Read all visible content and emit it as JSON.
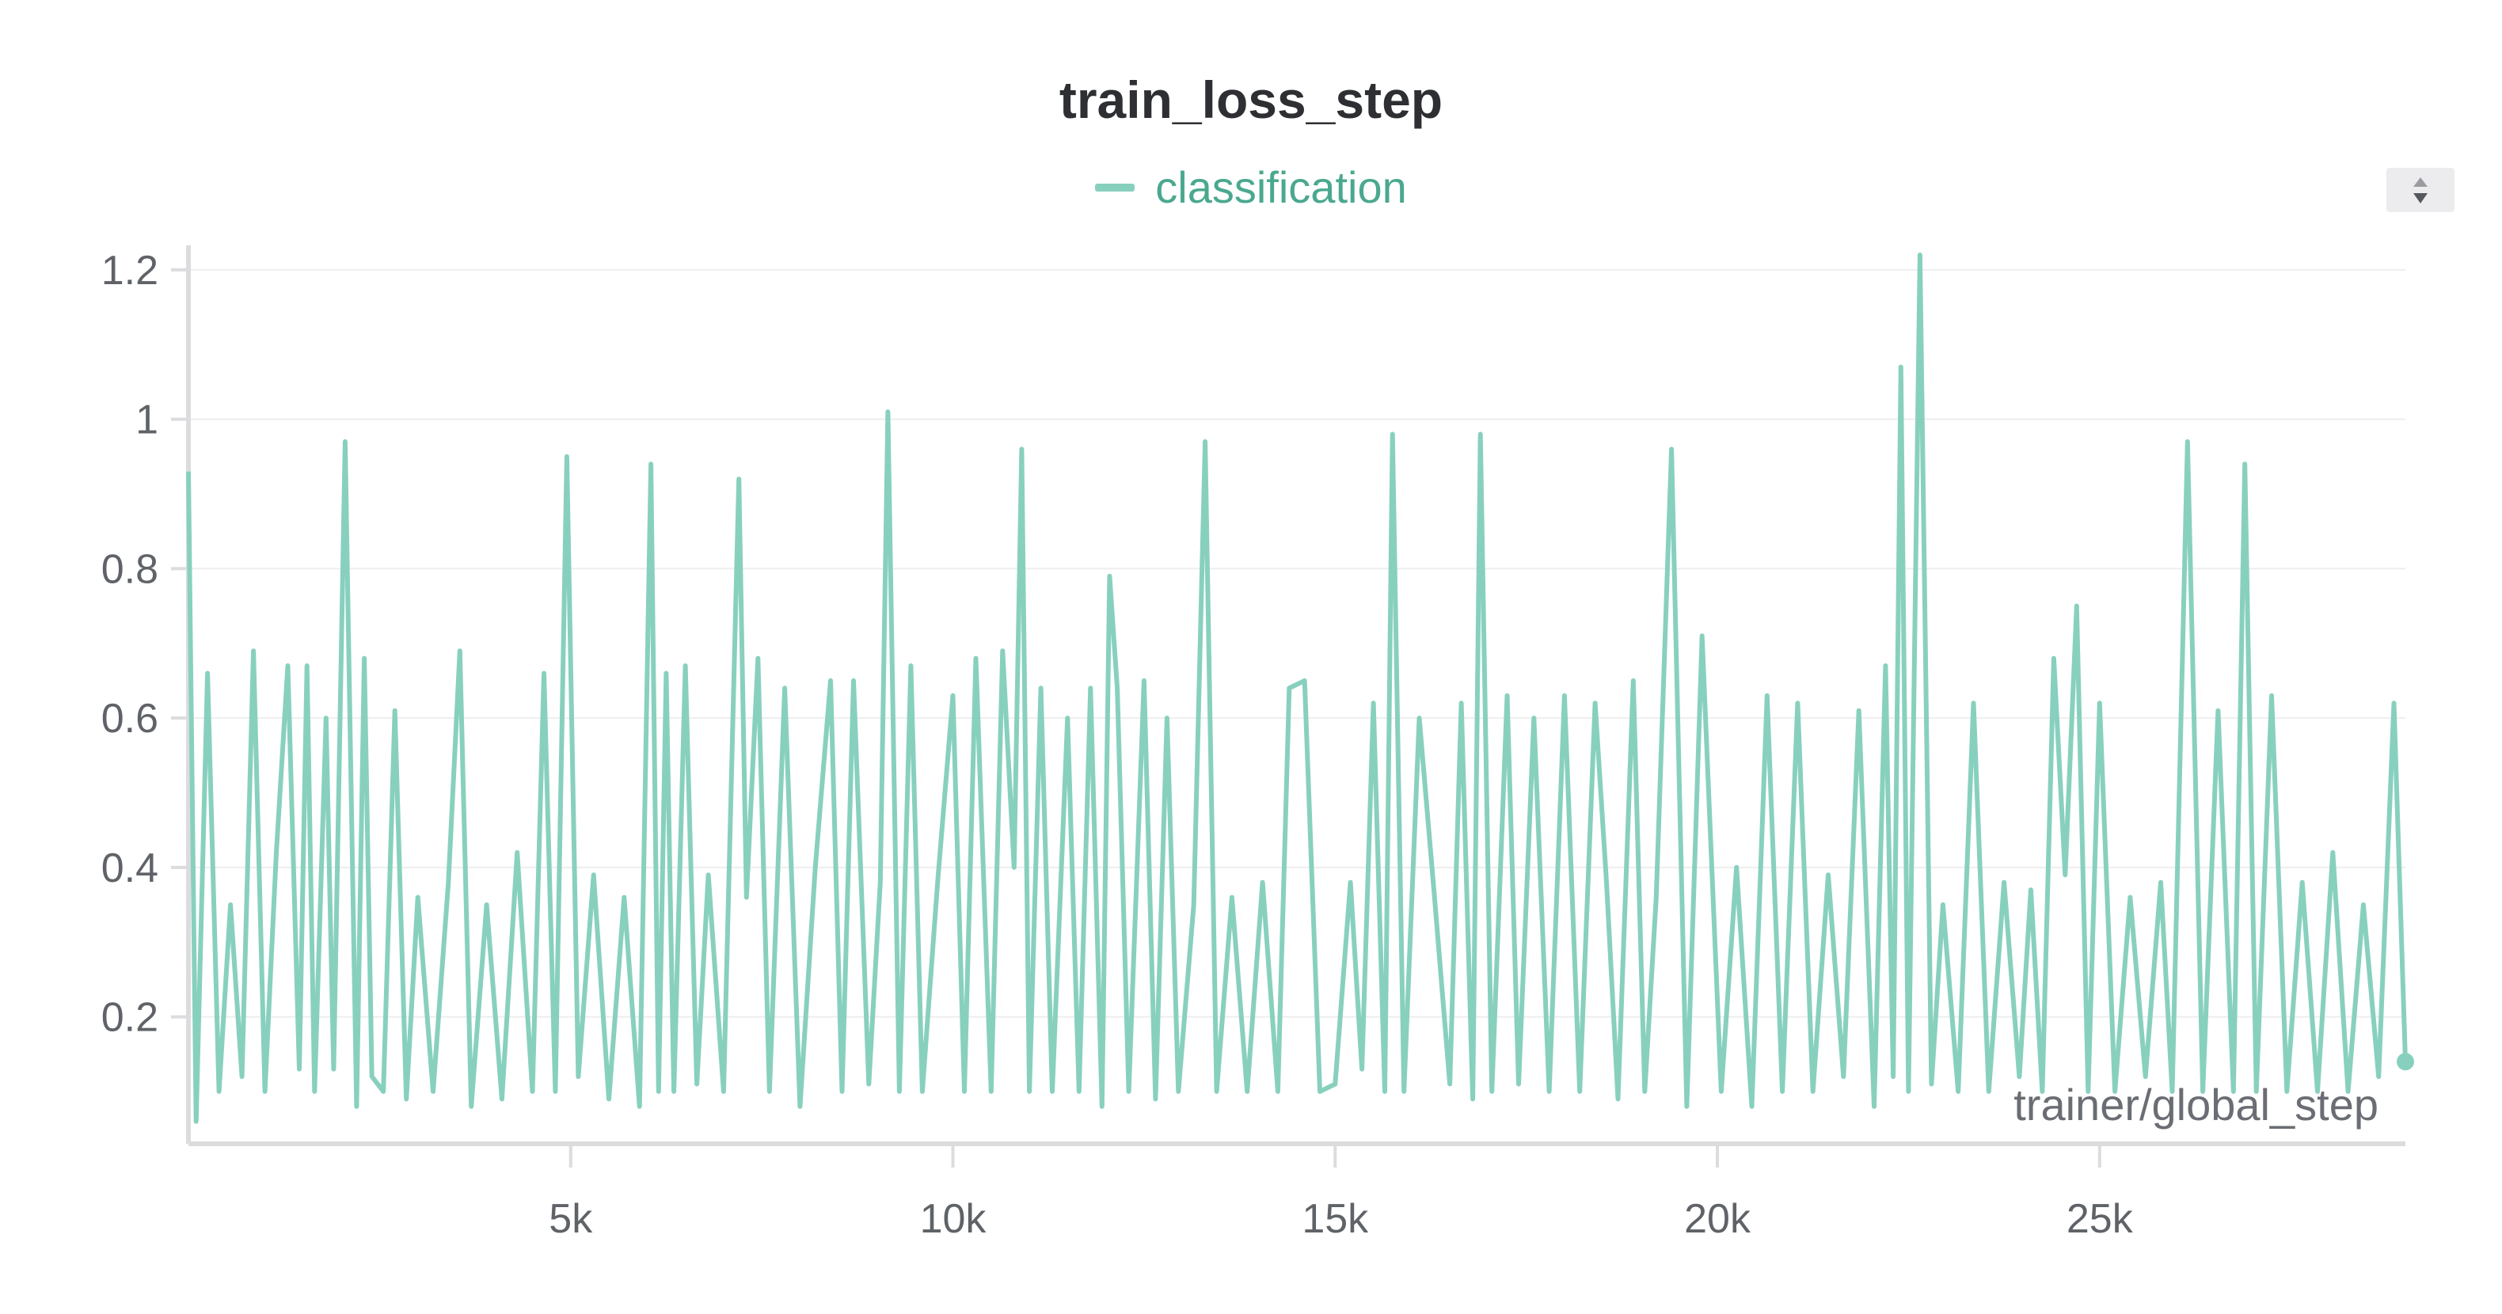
{
  "chart_data": {
    "type": "line",
    "title": "train_loss_step",
    "xlabel": "trainer/global_step",
    "ylabel": "",
    "xlim": [
      0,
      29000
    ],
    "ylim": [
      0.03,
      1.22
    ],
    "x_ticks": [
      5000,
      10000,
      15000,
      20000,
      25000
    ],
    "x_tick_labels": [
      "5k",
      "10k",
      "15k",
      "20k",
      "25k"
    ],
    "y_ticks": [
      0.2,
      0.4,
      0.6,
      0.8,
      1.0,
      1.2
    ],
    "y_tick_labels": [
      "0.2",
      "0.4",
      "0.6",
      "0.8",
      "1",
      "1.2"
    ],
    "grid": true,
    "legend_position": "top-center",
    "colors": {
      "series": "#88d0be",
      "legend_text": "#4aa88f",
      "axis": "#dcdcde",
      "grid": "#eeeeee"
    },
    "series": [
      {
        "name": "classification",
        "x": [
          0,
          100,
          250,
          400,
          550,
          700,
          850,
          1000,
          1150,
          1300,
          1450,
          1550,
          1650,
          1800,
          1900,
          2050,
          2200,
          2300,
          2400,
          2550,
          2700,
          2850,
          3000,
          3200,
          3400,
          3550,
          3700,
          3900,
          4100,
          4300,
          4500,
          4650,
          4800,
          4950,
          5100,
          5300,
          5500,
          5700,
          5900,
          6050,
          6150,
          6250,
          6350,
          6500,
          6650,
          6800,
          7000,
          7200,
          7300,
          7450,
          7600,
          7800,
          8000,
          8200,
          8400,
          8550,
          8700,
          8900,
          9050,
          9150,
          9300,
          9450,
          9600,
          9800,
          10000,
          10150,
          10300,
          10500,
          10650,
          10800,
          10900,
          11000,
          11150,
          11300,
          11500,
          11650,
          11800,
          11950,
          12050,
          12150,
          12300,
          12500,
          12650,
          12800,
          12950,
          13150,
          13300,
          13450,
          13650,
          13850,
          14050,
          14250,
          14400,
          14600,
          14800,
          15000,
          15200,
          15350,
          15500,
          15650,
          15750,
          15900,
          16100,
          16300,
          16500,
          16650,
          16800,
          16900,
          17050,
          17250,
          17400,
          17600,
          17800,
          18000,
          18200,
          18400,
          18550,
          18700,
          18900,
          19050,
          19200,
          19400,
          19600,
          19800,
          20050,
          20250,
          20450,
          20650,
          20850,
          21050,
          21250,
          21450,
          21650,
          21850,
          22050,
          22200,
          22300,
          22400,
          22500,
          22650,
          22800,
          22950,
          23150,
          23350,
          23550,
          23750,
          23950,
          24100,
          24250,
          24400,
          24550,
          24700,
          24850,
          25000,
          25200,
          25400,
          25600,
          25800,
          25950,
          26150,
          26350,
          26550,
          26750,
          26900,
          27050,
          27250,
          27450,
          27650,
          27850,
          28050,
          28250,
          28450,
          28650,
          28850,
          29000
        ],
        "y": [
          0.93,
          0.06,
          0.66,
          0.1,
          0.35,
          0.12,
          0.69,
          0.1,
          0.42,
          0.67,
          0.13,
          0.67,
          0.1,
          0.6,
          0.13,
          0.97,
          0.08,
          0.68,
          0.12,
          0.1,
          0.61,
          0.09,
          0.36,
          0.1,
          0.38,
          0.69,
          0.08,
          0.35,
          0.09,
          0.42,
          0.1,
          0.66,
          0.1,
          0.95,
          0.12,
          0.39,
          0.09,
          0.36,
          0.08,
          0.94,
          0.1,
          0.66,
          0.1,
          0.67,
          0.11,
          0.39,
          0.1,
          0.92,
          0.36,
          0.68,
          0.1,
          0.64,
          0.08,
          0.4,
          0.65,
          0.1,
          0.65,
          0.11,
          0.38,
          1.01,
          0.1,
          0.67,
          0.1,
          0.38,
          0.63,
          0.1,
          0.68,
          0.1,
          0.69,
          0.4,
          0.96,
          0.1,
          0.64,
          0.1,
          0.6,
          0.1,
          0.64,
          0.08,
          0.79,
          0.64,
          0.1,
          0.65,
          0.09,
          0.6,
          0.1,
          0.35,
          0.97,
          0.1,
          0.36,
          0.1,
          0.38,
          0.1,
          0.64,
          0.65,
          0.1,
          0.11,
          0.38,
          0.13,
          0.62,
          0.1,
          0.98,
          0.1,
          0.6,
          0.36,
          0.11,
          0.62,
          0.09,
          0.98,
          0.1,
          0.63,
          0.11,
          0.6,
          0.1,
          0.63,
          0.1,
          0.62,
          0.38,
          0.09,
          0.65,
          0.1,
          0.36,
          0.96,
          0.08,
          0.71,
          0.1,
          0.4,
          0.08,
          0.63,
          0.1,
          0.62,
          0.1,
          0.39,
          0.12,
          0.61,
          0.08,
          0.67,
          0.12,
          1.07,
          0.1,
          1.22,
          0.11,
          0.35,
          0.1,
          0.62,
          0.1,
          0.38,
          0.12,
          0.37,
          0.1,
          0.68,
          0.39,
          0.75,
          0.1,
          0.62,
          0.1,
          0.36,
          0.12,
          0.38,
          0.1,
          0.97,
          0.1,
          0.61,
          0.1,
          0.94,
          0.1,
          0.63,
          0.1,
          0.38,
          0.1,
          0.42,
          0.1,
          0.35,
          0.12,
          0.62,
          0.14
        ]
      }
    ]
  }
}
